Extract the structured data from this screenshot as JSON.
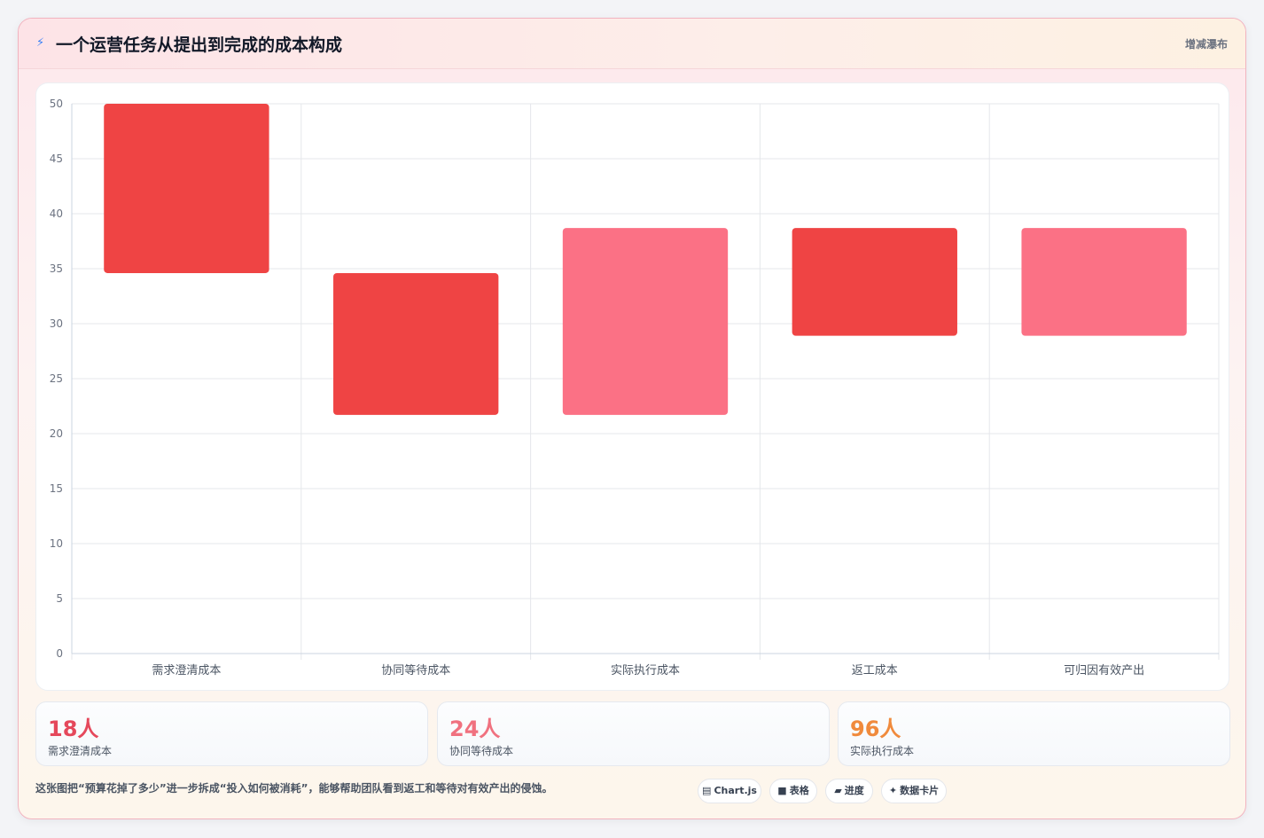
{
  "header": {
    "icon": "bolt-icon",
    "title": "一个运营任务从提出到完成的成本构成",
    "mode_link": "增减瀑布"
  },
  "colors": {
    "increase": "#ef4444",
    "decrease": "#fb7185",
    "stat1": "#e5485b",
    "stat2": "#f0717f",
    "stat3": "#f08a3c",
    "grid": "#e5e7eb",
    "tick": "#6b7280"
  },
  "chart_data": {
    "type": "bar",
    "subtype": "waterfall",
    "categories": [
      "需求澄清成本",
      "协同等待成本",
      "实际执行成本",
      "返工成本",
      "可归因有效产出"
    ],
    "ranges": [
      [
        34.6,
        50
      ],
      [
        21.7,
        34.6
      ],
      [
        21.7,
        38.7
      ],
      [
        28.9,
        38.7
      ],
      [
        28.9,
        38.7
      ]
    ],
    "bar_colors": [
      "#ef4444",
      "#ef4444",
      "#fb7185",
      "#ef4444",
      "#fb7185"
    ],
    "ylim": [
      0,
      50
    ],
    "yticks": [
      0,
      5,
      10,
      15,
      20,
      25,
      30,
      35,
      40,
      45,
      50
    ],
    "grid": true,
    "legend": "none",
    "title": "",
    "xlabel": "",
    "ylabel": ""
  },
  "stats": [
    {
      "value": "18人",
      "label": "需求澄清成本"
    },
    {
      "value": "24人",
      "label": "协同等待成本"
    },
    {
      "value": "96人",
      "label": "实际执行成本"
    }
  ],
  "footnote": "这张图把“预算花掉了多少”进一步拆成“投入如何被消耗”，能够帮助团队看到返工和等待对有效产出的侵蚀。",
  "chips": [
    {
      "icon": "chart-icon",
      "glyph": "▤",
      "label": "Chart.js"
    },
    {
      "icon": "table-icon",
      "glyph": "■",
      "label": "表格"
    },
    {
      "icon": "progress-icon",
      "glyph": "▰",
      "label": "进度"
    },
    {
      "icon": "card-icon",
      "glyph": "✦",
      "label": "数据卡片"
    }
  ]
}
